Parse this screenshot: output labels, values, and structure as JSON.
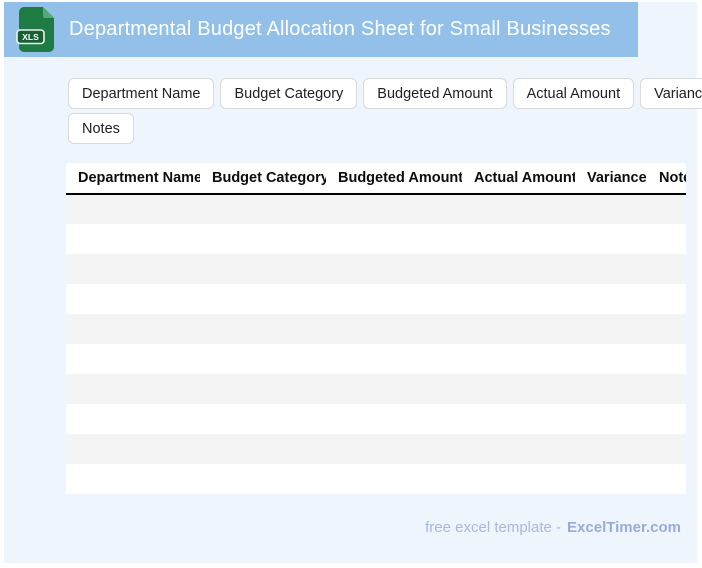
{
  "header": {
    "title": "Departmental Budget Allocation Sheet for Small Businesses",
    "file_icon_label": "XLS"
  },
  "chips": {
    "items": [
      "Department Name",
      "Budget Category",
      "Budgeted Amount",
      "Actual Amount",
      "Variance",
      "Notes"
    ]
  },
  "table": {
    "columns": [
      "Department Name",
      "Budget Category",
      "Budgeted Amount",
      "Actual Amount",
      "Variance",
      "Notes"
    ],
    "row_count": 10,
    "rows": []
  },
  "footer": {
    "prefix": "free excel template -",
    "brand": "ExcelTimer.com"
  },
  "colors": {
    "header_bg": "#92c0e8",
    "page_bg": "#eef5fd",
    "row_stripe": "#f4f4f4",
    "chip_border": "#d8dadc",
    "footer_text": "#a9b7e1",
    "footer_brand": "#9aabdb",
    "icon_green": "#1e7b44"
  }
}
